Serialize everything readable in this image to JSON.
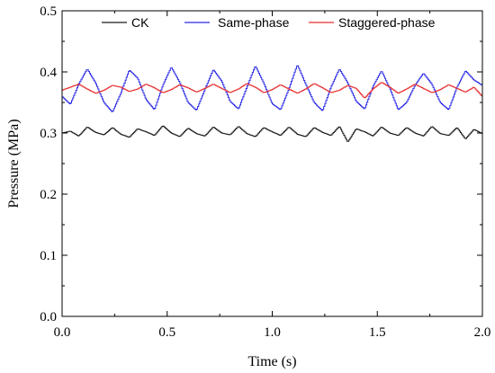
{
  "chart_data": {
    "type": "line",
    "title": "",
    "xlabel": "Time (s)",
    "ylabel": "Pressure (MPa)",
    "xlim": [
      0.0,
      2.0
    ],
    "ylim": [
      0.0,
      0.5
    ],
    "xticks": [
      "0.0",
      "0.5",
      "1.0",
      "1.5",
      "2.0"
    ],
    "yticks": [
      "0.0",
      "0.1",
      "0.2",
      "0.3",
      "0.4",
      "0.5"
    ],
    "x_values": [
      0.0,
      0.04,
      0.08,
      0.12,
      0.16,
      0.2,
      0.24,
      0.28,
      0.32,
      0.36,
      0.4,
      0.44,
      0.48,
      0.52,
      0.56,
      0.6,
      0.64,
      0.68,
      0.72,
      0.76,
      0.8,
      0.84,
      0.88,
      0.92,
      0.96,
      1.0,
      1.04,
      1.08,
      1.12,
      1.16,
      1.2,
      1.24,
      1.28,
      1.32,
      1.36,
      1.4,
      1.44,
      1.48,
      1.52,
      1.56,
      1.6,
      1.64,
      1.68,
      1.72,
      1.76,
      1.8,
      1.84,
      1.88,
      1.92,
      1.96,
      2.0
    ],
    "grid": false,
    "legend": "top",
    "series": [
      {
        "name": "CK",
        "color": "#1a1a1a",
        "values": [
          0.3,
          0.303,
          0.295,
          0.31,
          0.301,
          0.297,
          0.309,
          0.298,
          0.293,
          0.307,
          0.302,
          0.296,
          0.312,
          0.3,
          0.294,
          0.308,
          0.299,
          0.295,
          0.31,
          0.3,
          0.297,
          0.311,
          0.299,
          0.294,
          0.309,
          0.302,
          0.296,
          0.31,
          0.298,
          0.294,
          0.309,
          0.301,
          0.296,
          0.311,
          0.285,
          0.307,
          0.302,
          0.295,
          0.31,
          0.3,
          0.296,
          0.309,
          0.3,
          0.295,
          0.311,
          0.299,
          0.296,
          0.309,
          0.29,
          0.306,
          0.299
        ]
      },
      {
        "name": "Same-phase",
        "color": "#2a2ae6",
        "values": [
          0.36,
          0.347,
          0.38,
          0.405,
          0.382,
          0.35,
          0.334,
          0.365,
          0.403,
          0.39,
          0.355,
          0.338,
          0.378,
          0.408,
          0.383,
          0.35,
          0.337,
          0.371,
          0.404,
          0.385,
          0.352,
          0.339,
          0.375,
          0.41,
          0.382,
          0.348,
          0.338,
          0.372,
          0.412,
          0.38,
          0.35,
          0.336,
          0.375,
          0.405,
          0.382,
          0.352,
          0.339,
          0.376,
          0.402,
          0.373,
          0.338,
          0.35,
          0.378,
          0.398,
          0.38,
          0.35,
          0.338,
          0.375,
          0.402,
          0.387,
          0.378
        ]
      },
      {
        "name": "Staggered-phase",
        "color": "#e82d2d",
        "values": [
          0.37,
          0.375,
          0.38,
          0.372,
          0.365,
          0.37,
          0.378,
          0.375,
          0.368,
          0.372,
          0.38,
          0.374,
          0.366,
          0.371,
          0.379,
          0.374,
          0.367,
          0.373,
          0.38,
          0.373,
          0.366,
          0.372,
          0.381,
          0.375,
          0.366,
          0.371,
          0.379,
          0.372,
          0.365,
          0.372,
          0.381,
          0.374,
          0.366,
          0.37,
          0.378,
          0.373,
          0.357,
          0.372,
          0.383,
          0.375,
          0.365,
          0.372,
          0.38,
          0.373,
          0.366,
          0.371,
          0.379,
          0.373,
          0.367,
          0.375,
          0.36
        ]
      }
    ]
  }
}
